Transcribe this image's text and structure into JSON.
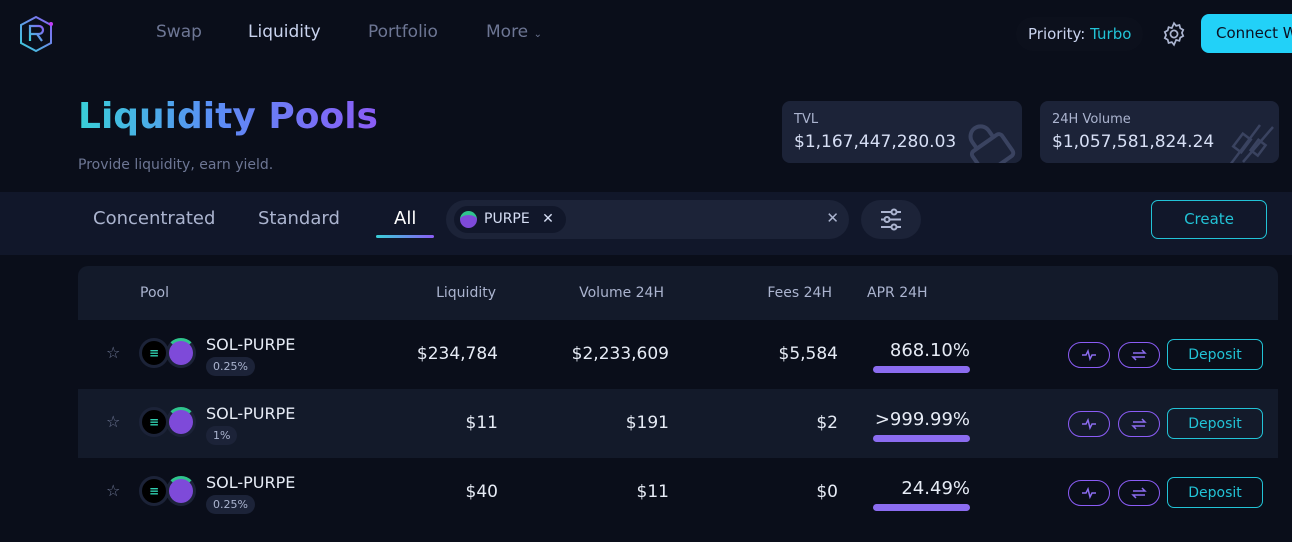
{
  "nav": {
    "items": [
      "Swap",
      "Liquidity",
      "Portfolio",
      "More"
    ],
    "active": "Liquidity",
    "priority_label": "Priority:",
    "priority_value": "Turbo",
    "connect": "Connect W"
  },
  "header": {
    "title_a": "Liquidity",
    "title_b": "Pools",
    "subtitle": "Provide liquidity, earn yield."
  },
  "stats": [
    {
      "label": "TVL",
      "value": "$1,167,447,280.03"
    },
    {
      "label": "24H Volume",
      "value": "$1,057,581,824.24"
    }
  ],
  "tabs": [
    "Concentrated",
    "Standard",
    "All"
  ],
  "active_tab": "All",
  "search": {
    "chip": "PURPE"
  },
  "create": "Create",
  "table": {
    "headers": [
      "Pool",
      "Liquidity",
      "Volume 24H",
      "Fees 24H",
      "APR 24H"
    ],
    "rows": [
      {
        "pool": "SOL-PURPE",
        "fee": "0.25%",
        "liquidity": "$234,784",
        "volume": "$2,233,609",
        "fees": "$5,584",
        "apr": "868.10%"
      },
      {
        "pool": "SOL-PURPE",
        "fee": "1%",
        "liquidity": "$11",
        "volume": "$191",
        "fees": "$2",
        "apr": ">999.99%"
      },
      {
        "pool": "SOL-PURPE",
        "fee": "0.25%",
        "liquidity": "$40",
        "volume": "$11",
        "fees": "$0",
        "apr": "24.49%"
      }
    ],
    "deposit": "Deposit"
  },
  "colors": {
    "accent": "#22c3d6",
    "purple": "#8b5cf6"
  }
}
